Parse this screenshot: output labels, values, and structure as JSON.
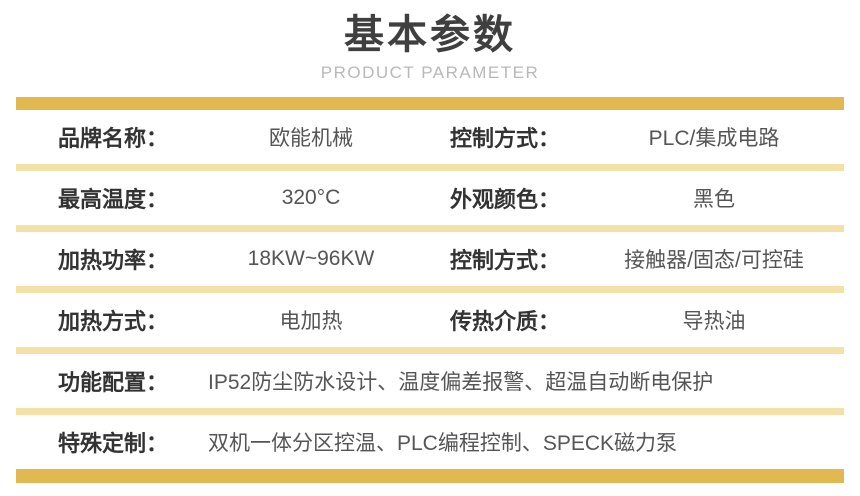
{
  "header": {
    "title": "基本参数",
    "subtitle": "PRODUCT PARAMETER"
  },
  "colors": {
    "bar_gold": "#e2b950",
    "separator_light_gold": "#f4e1a8",
    "title_text": "#3f3f3f",
    "subtitle_text": "#b8b8b8",
    "label_text": "#333333",
    "value_text": "#555555"
  },
  "table": {
    "rows": [
      {
        "type": "double",
        "cells": [
          {
            "label": "品牌名称：",
            "value": "欧能机械"
          },
          {
            "label": "控制方式：",
            "value": "PLC/集成电路"
          }
        ]
      },
      {
        "type": "double",
        "cells": [
          {
            "label": "最高温度：",
            "value": "320°C"
          },
          {
            "label": "外观颜色：",
            "value": "黑色"
          }
        ]
      },
      {
        "type": "double",
        "cells": [
          {
            "label": "加热功率：",
            "value": "18KW~96KW"
          },
          {
            "label": "控制方式：",
            "value": "接触器/固态/可控硅"
          }
        ]
      },
      {
        "type": "double",
        "cells": [
          {
            "label": "加热方式：",
            "value": "电加热"
          },
          {
            "label": "传热介质：",
            "value": "导热油"
          }
        ]
      },
      {
        "type": "full",
        "cells": [
          {
            "label": "功能配置：",
            "value": "IP52防尘防水设计、温度偏差报警、超温自动断电保护"
          }
        ]
      },
      {
        "type": "full",
        "cells": [
          {
            "label": "特殊定制：",
            "value": "双机一体分区控温、PLC编程控制、SPECK磁力泵"
          }
        ]
      }
    ]
  }
}
